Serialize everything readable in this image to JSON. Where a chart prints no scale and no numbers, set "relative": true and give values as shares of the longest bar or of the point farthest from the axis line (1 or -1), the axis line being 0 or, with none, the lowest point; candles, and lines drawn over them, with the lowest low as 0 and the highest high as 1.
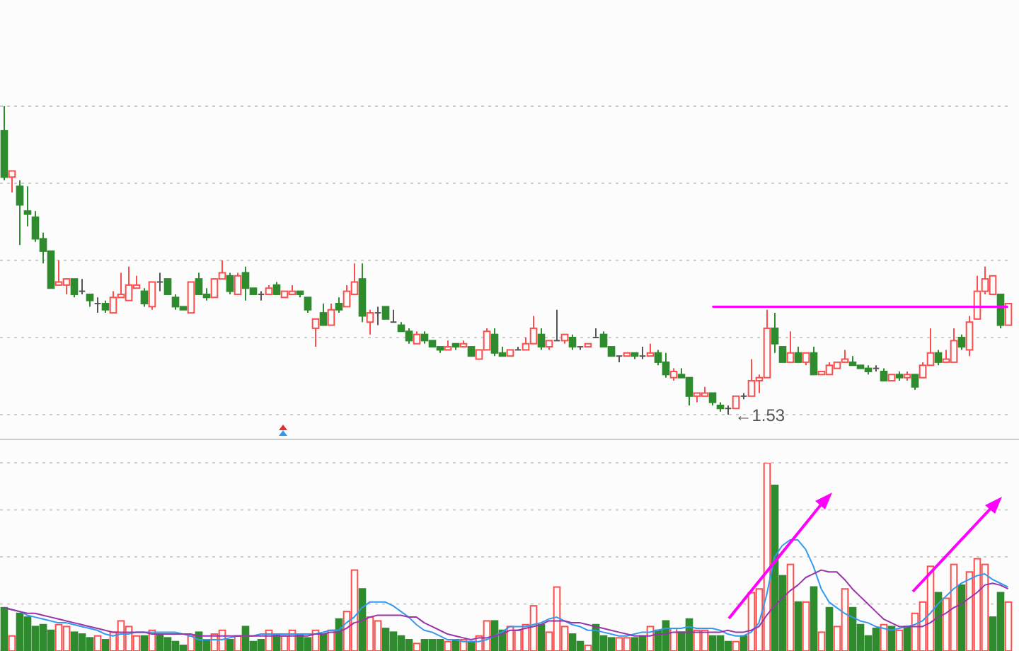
{
  "chart_data": [
    {
      "type": "candlestick",
      "relative": true,
      "grid": true,
      "annotations": [
        "←1.53"
      ],
      "categories": [
        null,
        null,
        null,
        null,
        null,
        null,
        null,
        null,
        null,
        null,
        null,
        null,
        null,
        null,
        null,
        null,
        null,
        null,
        null,
        null,
        null,
        null,
        null,
        null,
        null,
        null,
        null,
        null,
        null,
        null,
        null,
        null,
        null,
        null,
        null,
        null,
        null,
        null,
        null,
        null,
        null,
        null,
        null,
        null,
        null,
        null,
        null,
        null,
        null,
        null,
        null,
        null,
        null,
        null,
        null,
        null,
        null,
        null,
        null,
        null,
        null,
        null,
        null,
        null,
        null,
        null,
        null,
        null,
        null,
        null,
        null,
        null,
        null,
        null,
        null,
        null,
        null,
        null,
        null,
        null,
        null,
        null,
        null,
        null,
        null,
        null,
        null,
        null,
        null,
        null,
        null,
        null,
        null,
        null,
        null,
        null,
        null,
        null,
        null,
        null,
        null,
        null,
        null,
        null,
        null,
        null,
        null,
        null,
        null,
        null,
        null,
        null,
        null,
        null,
        null,
        null,
        null,
        null,
        null,
        null,
        null,
        null,
        null,
        null,
        null,
        null,
        null,
        null,
        null,
        null
      ],
      "ohlc": [
        [
          0.92,
          1,
          0.76,
          0.77
        ],
        [
          0.77,
          0.79,
          0.72,
          0.79
        ],
        [
          0.74,
          0.76,
          0.55,
          0.68
        ],
        [
          0.66,
          0.74,
          0.61,
          0.65
        ],
        [
          0.64,
          0.66,
          0.56,
          0.57
        ],
        [
          0.57,
          0.59,
          0.49,
          0.53
        ],
        [
          0.53,
          0.53,
          0.41,
          0.41
        ],
        [
          0.42,
          0.5,
          0.42,
          0.43
        ],
        [
          0.42,
          0.44,
          0.39,
          0.44
        ],
        [
          0.44,
          0.44,
          0.38,
          0.39
        ],
        [
          0.4,
          0.44,
          0.39,
          0.4
        ],
        [
          0.39,
          0.39,
          0.35,
          0.37
        ],
        [
          0.36,
          0.38,
          0.33,
          0.36
        ],
        [
          0.36,
          0.37,
          0.33,
          0.34
        ],
        [
          0.33,
          0.4,
          0.33,
          0.38
        ],
        [
          0.38,
          0.46,
          0.38,
          0.39
        ],
        [
          0.37,
          0.48,
          0.37,
          0.42
        ],
        [
          0.41,
          0.45,
          0.41,
          0.42
        ],
        [
          0.4,
          0.41,
          0.35,
          0.36
        ],
        [
          0.35,
          0.43,
          0.34,
          0.43
        ],
        [
          0.43,
          0.46,
          0.4,
          0.43
        ],
        [
          0.44,
          0.44,
          0.39,
          0.39
        ],
        [
          0.38,
          0.39,
          0.34,
          0.35
        ],
        [
          0.35,
          0.35,
          0.34,
          0.34
        ],
        [
          0.33,
          0.43,
          0.33,
          0.43
        ],
        [
          0.44,
          0.46,
          0.39,
          0.39
        ],
        [
          0.39,
          0.41,
          0.37,
          0.38
        ],
        [
          0.38,
          0.44,
          0.38,
          0.44
        ],
        [
          0.44,
          0.5,
          0.44,
          0.46
        ],
        [
          0.45,
          0.46,
          0.39,
          0.4
        ],
        [
          0.39,
          0.46,
          0.39,
          0.45
        ],
        [
          0.46,
          0.48,
          0.37,
          0.41
        ],
        [
          0.41,
          0.41,
          0.39,
          0.39
        ],
        [
          0.39,
          0.4,
          0.37,
          0.39
        ],
        [
          0.39,
          0.42,
          0.39,
          0.41
        ],
        [
          0.42,
          0.43,
          0.39,
          0.39
        ],
        [
          0.38,
          0.4,
          0.38,
          0.4
        ],
        [
          0.39,
          0.42,
          0.39,
          0.4
        ],
        [
          0.4,
          0.4,
          0.38,
          0.39
        ],
        [
          0.38,
          0.38,
          0.33,
          0.34
        ],
        [
          0.28,
          0.31,
          0.22,
          0.31
        ],
        [
          0.33,
          0.36,
          0.29,
          0.29
        ],
        [
          0.29,
          0.36,
          0.29,
          0.34
        ],
        [
          0.36,
          0.38,
          0.33,
          0.34
        ],
        [
          0.35,
          0.42,
          0.35,
          0.4
        ],
        [
          0.39,
          0.49,
          0.39,
          0.43
        ],
        [
          0.44,
          0.49,
          0.3,
          0.32
        ],
        [
          0.3,
          0.34,
          0.26,
          0.33
        ],
        [
          0.33,
          0.35,
          0.29,
          0.33
        ],
        [
          0.35,
          0.35,
          0.31,
          0.31
        ],
        [
          0.3,
          0.34,
          0.3,
          0.3
        ],
        [
          0.29,
          0.3,
          0.27,
          0.27
        ],
        [
          0.27,
          0.28,
          0.23,
          0.24
        ],
        [
          0.23,
          0.27,
          0.23,
          0.26
        ],
        [
          0.26,
          0.27,
          0.23,
          0.24
        ],
        [
          0.24,
          0.24,
          0.22,
          0.22
        ],
        [
          0.22,
          0.22,
          0.2,
          0.21
        ],
        [
          0.21,
          0.24,
          0.21,
          0.22
        ],
        [
          0.23,
          0.23,
          0.21,
          0.22
        ],
        [
          0.22,
          0.24,
          0.22,
          0.23
        ],
        [
          0.22,
          0.22,
          0.19,
          0.19
        ],
        [
          0.18,
          0.21,
          0.18,
          0.21
        ],
        [
          0.21,
          0.28,
          0.21,
          0.27
        ],
        [
          0.26,
          0.28,
          0.19,
          0.2
        ],
        [
          0.2,
          0.22,
          0.19,
          0.19
        ],
        [
          0.19,
          0.21,
          0.19,
          0.21
        ],
        [
          0.21,
          0.22,
          0.21,
          0.21
        ],
        [
          0.21,
          0.25,
          0.21,
          0.23
        ],
        [
          0.23,
          0.32,
          0.23,
          0.28
        ],
        [
          0.26,
          0.28,
          0.21,
          0.22
        ],
        [
          0.22,
          0.24,
          0.21,
          0.24
        ],
        [
          0.24,
          0.34,
          0.24,
          0.24
        ],
        [
          0.24,
          0.26,
          0.23,
          0.26
        ],
        [
          0.25,
          0.26,
          0.21,
          0.22
        ],
        [
          0.22,
          0.22,
          0.21,
          0.22
        ],
        [
          0.22,
          0.23,
          0.22,
          0.23
        ],
        [
          0.25,
          0.28,
          0.25,
          0.25
        ],
        [
          0.26,
          0.27,
          0.22,
          0.22
        ],
        [
          0.22,
          0.22,
          0.19,
          0.19
        ],
        [
          0.19,
          0.19,
          0.17,
          0.19
        ],
        [
          0.19,
          0.2,
          0.19,
          0.2
        ],
        [
          0.2,
          0.2,
          0.18,
          0.19
        ],
        [
          0.19,
          0.22,
          0.18,
          0.19
        ],
        [
          0.19,
          0.23,
          0.19,
          0.2
        ],
        [
          0.2,
          0.21,
          0.16,
          0.17
        ],
        [
          0.17,
          0.2,
          0.12,
          0.13
        ],
        [
          0.12,
          0.15,
          0.11,
          0.14
        ],
        [
          0.13,
          0.15,
          0.12,
          0.12
        ],
        [
          0.12,
          0.12,
          0.03,
          0.06
        ],
        [
          0.06,
          0.07,
          0.04,
          0.07
        ],
        [
          0.06,
          0.09,
          0.06,
          0.07
        ],
        [
          0.07,
          0.07,
          0.03,
          0.04
        ],
        [
          0.03,
          0.04,
          0.01,
          0.02
        ],
        [
          0.02,
          0.03,
          0,
          0.02
        ],
        [
          0.02,
          0.06,
          0.02,
          0.06
        ],
        [
          0.06,
          0.07,
          0.05,
          0.06
        ],
        [
          0.06,
          0.18,
          0.06,
          0.11
        ],
        [
          0.11,
          0.13,
          0.07,
          0.12
        ],
        [
          0.12,
          0.34,
          0.12,
          0.28
        ],
        [
          0.28,
          0.33,
          0.2,
          0.23
        ],
        [
          0.22,
          0.22,
          0.17,
          0.17
        ],
        [
          0.17,
          0.27,
          0.17,
          0.2
        ],
        [
          0.2,
          0.22,
          0.17,
          0.17
        ],
        [
          0.17,
          0.2,
          0.16,
          0.2
        ],
        [
          0.2,
          0.22,
          0.13,
          0.13
        ],
        [
          0.13,
          0.14,
          0.13,
          0.14
        ],
        [
          0.13,
          0.17,
          0.13,
          0.16
        ],
        [
          0.15,
          0.17,
          0.15,
          0.17
        ],
        [
          0.17,
          0.21,
          0.17,
          0.18
        ],
        [
          0.17,
          0.19,
          0.16,
          0.16
        ],
        [
          0.16,
          0.16,
          0.15,
          0.15
        ],
        [
          0.15,
          0.16,
          0.13,
          0.14
        ],
        [
          0.15,
          0.16,
          0.14,
          0.15
        ],
        [
          0.14,
          0.15,
          0.11,
          0.11
        ],
        [
          0.11,
          0.13,
          0.11,
          0.13
        ],
        [
          0.13,
          0.14,
          0.11,
          0.12
        ],
        [
          0.12,
          0.14,
          0.11,
          0.13
        ],
        [
          0.13,
          0.13,
          0.08,
          0.09
        ],
        [
          0.12,
          0.17,
          0.12,
          0.16
        ],
        [
          0.16,
          0.28,
          0.16,
          0.2
        ],
        [
          0.2,
          0.21,
          0.16,
          0.17
        ],
        [
          0.17,
          0.21,
          0.17,
          0.18
        ],
        [
          0.17,
          0.28,
          0.17,
          0.24
        ],
        [
          0.25,
          0.26,
          0.21,
          0.22
        ],
        [
          0.21,
          0.32,
          0.19,
          0.3
        ],
        [
          0.31,
          0.45,
          0.31,
          0.4
        ],
        [
          0.4,
          0.48,
          0.39,
          0.44
        ],
        [
          0.39,
          0.45,
          0.39,
          0.45
        ],
        [
          0.39,
          0.39,
          0.28,
          0.29
        ],
        [
          0.29,
          0.36,
          0.29,
          0.36
        ]
      ],
      "series": [
        {
          "type": "line",
          "color": "#ff00ff",
          "values": [
            null,
            null,
            null,
            null,
            null,
            null,
            null,
            null,
            null,
            null,
            null,
            null,
            null,
            null,
            null,
            null,
            null,
            null,
            null,
            null,
            null,
            null,
            null,
            null,
            null,
            null,
            null,
            null,
            null,
            null,
            null,
            null,
            null,
            null,
            null,
            null,
            null,
            null,
            null,
            null,
            null,
            null,
            null,
            null,
            null,
            null,
            null,
            null,
            null,
            null,
            null,
            null,
            null,
            null,
            null,
            null,
            null,
            null,
            null,
            null,
            null,
            null,
            null,
            null,
            null,
            null,
            null,
            null,
            null,
            null,
            null,
            null,
            null,
            null,
            null,
            null,
            null,
            null,
            null,
            null,
            null,
            null,
            null,
            null,
            null,
            null,
            null,
            null,
            null,
            null,
            null,
            0.35,
            0.35,
            0.35,
            0.35,
            0.35,
            0.35,
            0.35,
            0.35,
            0.35,
            0.35,
            0.35,
            0.35,
            0.35,
            0.35,
            0.35,
            0.35,
            0.35,
            0.35,
            0.35,
            0.35,
            0.35,
            0.35,
            0.35,
            0.35,
            0.35,
            0.35,
            0.35,
            0.35,
            0.35,
            0.35,
            0.35,
            0.35,
            0.35,
            0.35,
            0.35,
            0.35,
            0.35,
            0.35,
            0.35
          ]
        }
      ]
    },
    {
      "type": "bar",
      "relative": true,
      "grid": true,
      "marker": "none",
      "categories": [
        null,
        null,
        null,
        null,
        null,
        null,
        null,
        null,
        null,
        null,
        null,
        null,
        null,
        null,
        null,
        null,
        null,
        null,
        null,
        null,
        null,
        null,
        null,
        null,
        null,
        null,
        null,
        null,
        null,
        null,
        null,
        null,
        null,
        null,
        null,
        null,
        null,
        null,
        null,
        null,
        null,
        null,
        null,
        null,
        null,
        null,
        null,
        null,
        null,
        null,
        null,
        null,
        null,
        null,
        null,
        null,
        null,
        null,
        null,
        null,
        null,
        null,
        null,
        null,
        null,
        null,
        null,
        null,
        null,
        null,
        null,
        null,
        null,
        null,
        null,
        null,
        null,
        null,
        null,
        null,
        null,
        null,
        null,
        null,
        null,
        null,
        null,
        null,
        null,
        null,
        null,
        null,
        null,
        null,
        null,
        null,
        null,
        null,
        null,
        null,
        null,
        null,
        null,
        null,
        null,
        null,
        null,
        null,
        null,
        null,
        null,
        null,
        null,
        null,
        null,
        null,
        null,
        null,
        null,
        null,
        null,
        null,
        null,
        null,
        null,
        null,
        null,
        null,
        null,
        null
      ],
      "series": [
        {
          "type": "bar",
          "colors": [
            "#2e8b2e",
            "#ff4d4d",
            "#2e8b2e",
            "#2e8b2e",
            "#2e8b2e",
            "#2e8b2e",
            "#2e8b2e",
            "#ff4d4d",
            "#ff4d4d",
            "#2e8b2e",
            "#2e8b2e",
            "#2e8b2e",
            "#ff4d4d",
            "#2e8b2e",
            "#ff4d4d",
            "#ff4d4d",
            "#ff4d4d",
            "#ff4d4d",
            "#2e8b2e",
            "#ff4d4d",
            "#2e8b2e",
            "#2e8b2e",
            "#2e8b2e",
            "#2e8b2e",
            "#ff4d4d",
            "#2e8b2e",
            "#2e8b2e",
            "#ff4d4d",
            "#ff4d4d",
            "#2e8b2e",
            "#ff4d4d",
            "#2e8b2e",
            "#2e8b2e",
            "#2e8b2e",
            "#ff4d4d",
            "#2e8b2e",
            "#ff4d4d",
            "#ff4d4d",
            "#2e8b2e",
            "#2e8b2e",
            "#ff4d4d",
            "#2e8b2e",
            "#ff4d4d",
            "#2e8b2e",
            "#ff4d4d",
            "#ff4d4d",
            "#2e8b2e",
            "#ff4d4d",
            "#ff4d4d",
            "#2e8b2e",
            "#2e8b2e",
            "#2e8b2e",
            "#2e8b2e",
            "#ff4d4d",
            "#2e8b2e",
            "#2e8b2e",
            "#2e8b2e",
            "#ff4d4d",
            "#2e8b2e",
            "#ff4d4d",
            "#2e8b2e",
            "#ff4d4d",
            "#ff4d4d",
            "#2e8b2e",
            "#2e8b2e",
            "#ff4d4d",
            "#ff4d4d",
            "#ff4d4d",
            "#ff4d4d",
            "#2e8b2e",
            "#ff4d4d",
            "#ff4d4d",
            "#ff4d4d",
            "#2e8b2e",
            "#2e8b2e",
            "#ff4d4d",
            "#2e8b2e",
            "#2e8b2e",
            "#2e8b2e",
            "#ff4d4d",
            "#ff4d4d",
            "#2e8b2e",
            "#2e8b2e",
            "#ff4d4d",
            "#2e8b2e",
            "#2e8b2e",
            "#ff4d4d",
            "#2e8b2e",
            "#2e8b2e",
            "#ff4d4d",
            "#ff4d4d",
            "#2e8b2e",
            "#2e8b2e",
            "#2e8b2e",
            "#ff4d4d",
            "#2e8b2e",
            "#ff4d4d",
            "#ff4d4d",
            "#ff4d4d",
            "#2e8b2e",
            "#2e8b2e",
            "#ff4d4d",
            "#2e8b2e",
            "#ff4d4d",
            "#2e8b2e",
            "#ff4d4d",
            "#2e8b2e",
            "#ff4d4d",
            "#ff4d4d",
            "#2e8b2e",
            "#2e8b2e",
            "#2e8b2e",
            "#2e8b2e",
            "#ff4d4d",
            "#2e8b2e",
            "#ff4d4d",
            "#2e8b2e",
            "#ff4d4d",
            "#ff4d4d",
            "#ff4d4d",
            "#2e8b2e",
            "#ff4d4d",
            "#ff4d4d",
            "#2e8b2e",
            "#ff4d4d",
            "#ff4d4d",
            "#ff4d4d",
            "#2e8b2e",
            "#2e8b2e",
            "#ff4d4d"
          ],
          "values": [
            0.23,
            0.08,
            0.2,
            0.18,
            0.13,
            0.14,
            0.11,
            0.14,
            0.13,
            0.1,
            0.09,
            0.07,
            0.08,
            0.06,
            0.1,
            0.16,
            0.13,
            0.08,
            0.08,
            0.11,
            0.09,
            0.07,
            0.05,
            0.03,
            0.08,
            0.1,
            0.06,
            0.09,
            0.11,
            0.06,
            0.08,
            0.13,
            0.05,
            0.06,
            0.11,
            0.09,
            0.08,
            0.11,
            0.09,
            0.07,
            0.11,
            0.09,
            0.11,
            0.17,
            0.21,
            0.43,
            0.33,
            0.18,
            0.16,
            0.12,
            0.1,
            0.08,
            0.06,
            0.04,
            0.06,
            0.06,
            0.06,
            0.05,
            0.06,
            0.06,
            0.05,
            0.08,
            0.16,
            0.16,
            0.11,
            0.13,
            0.11,
            0.14,
            0.24,
            0.14,
            0.1,
            0.34,
            0.13,
            0.09,
            0.05,
            0.03,
            0.14,
            0.08,
            0.07,
            0.07,
            0.07,
            0.07,
            0.08,
            0.13,
            0.11,
            0.16,
            0.12,
            0.1,
            0.17,
            0.11,
            0.11,
            0.08,
            0.08,
            0.05,
            0.05,
            0.08,
            0.31,
            0.33,
            1,
            0.88,
            0.4,
            0.46,
            0.26,
            0.26,
            0.34,
            0.1,
            0.23,
            0.13,
            0.33,
            0.23,
            0.14,
            0.08,
            0.12,
            0.14,
            0.13,
            0.11,
            0.13,
            0.2,
            0.26,
            0.45,
            0.31,
            0.28,
            0.46,
            0.35,
            0.42,
            0.49,
            0.46,
            0.18,
            0.31,
            0.26
          ]
        },
        {
          "type": "line",
          "color": "#3399ee",
          "values": [
            0.23,
            0.22,
            0.21,
            0.19,
            0.18,
            0.17,
            0.16,
            0.15,
            0.15,
            0.14,
            0.13,
            0.12,
            0.11,
            0.09,
            0.08,
            0.09,
            0.09,
            0.1,
            0.1,
            0.1,
            0.1,
            0.1,
            0.1,
            0.09,
            0.08,
            0.06,
            0.06,
            0.06,
            0.06,
            0.07,
            0.08,
            0.08,
            0.08,
            0.09,
            0.09,
            0.09,
            0.09,
            0.09,
            0.09,
            0.09,
            0.09,
            0.1,
            0.11,
            0.11,
            0.15,
            0.18,
            0.23,
            0.26,
            0.26,
            0.26,
            0.24,
            0.21,
            0.18,
            0.14,
            0.11,
            0.1,
            0.08,
            0.06,
            0.06,
            0.05,
            0.05,
            0.05,
            0.06,
            0.08,
            0.1,
            0.13,
            0.13,
            0.13,
            0.14,
            0.15,
            0.17,
            0.18,
            0.16,
            0.14,
            0.13,
            0.11,
            0.11,
            0.1,
            0.09,
            0.08,
            0.08,
            0.09,
            0.1,
            0.1,
            0.11,
            0.12,
            0.12,
            0.12,
            0.13,
            0.12,
            0.12,
            0.12,
            0.11,
            0.09,
            0.08,
            0.08,
            0.1,
            0.15,
            0.3,
            0.5,
            0.56,
            0.59,
            0.59,
            0.54,
            0.45,
            0.33,
            0.26,
            0.23,
            0.2,
            0.18,
            0.16,
            0.15,
            0.13,
            0.12,
            0.11,
            0.12,
            0.13,
            0.14,
            0.16,
            0.2,
            0.25,
            0.29,
            0.33,
            0.36,
            0.38,
            0.4,
            0.41,
            0.38,
            0.36,
            0.34
          ]
        },
        {
          "type": "line",
          "color": "#9933aa",
          "values": [
            0.23,
            0.22,
            0.21,
            0.2,
            0.2,
            0.19,
            0.18,
            0.17,
            0.16,
            0.15,
            0.14,
            0.13,
            0.12,
            0.11,
            0.1,
            0.1,
            0.1,
            0.1,
            0.1,
            0.09,
            0.09,
            0.09,
            0.09,
            0.09,
            0.09,
            0.08,
            0.08,
            0.08,
            0.08,
            0.08,
            0.08,
            0.08,
            0.08,
            0.08,
            0.08,
            0.08,
            0.08,
            0.08,
            0.08,
            0.08,
            0.09,
            0.09,
            0.1,
            0.1,
            0.12,
            0.15,
            0.16,
            0.18,
            0.19,
            0.19,
            0.19,
            0.19,
            0.18,
            0.18,
            0.15,
            0.13,
            0.11,
            0.09,
            0.08,
            0.07,
            0.06,
            0.07,
            0.07,
            0.08,
            0.09,
            0.11,
            0.11,
            0.12,
            0.13,
            0.14,
            0.16,
            0.16,
            0.16,
            0.15,
            0.15,
            0.14,
            0.13,
            0.12,
            0.11,
            0.1,
            0.09,
            0.08,
            0.08,
            0.08,
            0.09,
            0.09,
            0.1,
            0.1,
            0.1,
            0.1,
            0.1,
            0.1,
            0.1,
            0.11,
            0.1,
            0.1,
            0.11,
            0.13,
            0.19,
            0.24,
            0.28,
            0.32,
            0.35,
            0.39,
            0.41,
            0.43,
            0.42,
            0.42,
            0.38,
            0.33,
            0.29,
            0.25,
            0.21,
            0.17,
            0.15,
            0.13,
            0.13,
            0.13,
            0.13,
            0.15,
            0.18,
            0.2,
            0.23,
            0.25,
            0.28,
            0.31,
            0.35,
            0.36,
            0.35,
            0.33
          ]
        }
      ]
    }
  ]
}
